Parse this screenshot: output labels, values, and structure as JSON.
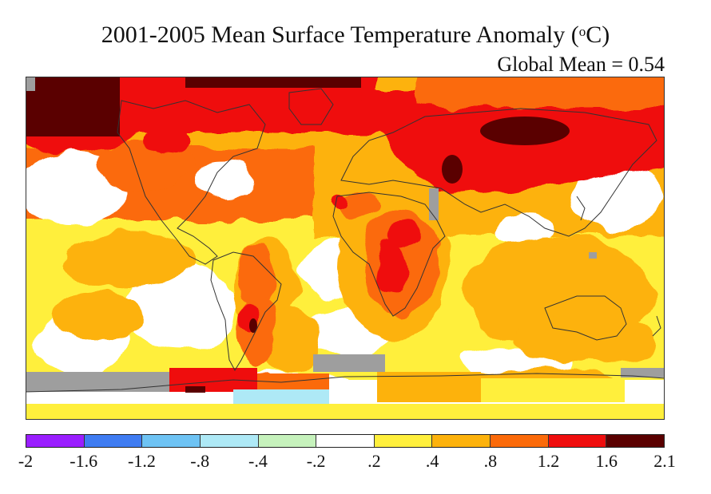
{
  "title": {
    "text": "2001-2005 Mean Surface Temperature Anomaly (",
    "unit_sup": "o",
    "unit_tail": "C)"
  },
  "subtitle": "Global Mean = 0.54",
  "legend": {
    "bins": [
      {
        "range": [
          -2,
          -1.6
        ],
        "color": "#9a1eff"
      },
      {
        "range": [
          -1.6,
          -1.2
        ],
        "color": "#3f7cf2"
      },
      {
        "range": [
          -1.2,
          -0.8
        ],
        "color": "#6ec3f4"
      },
      {
        "range": [
          -0.8,
          -0.4
        ],
        "color": "#aee9f6"
      },
      {
        "range": [
          -0.4,
          -0.2
        ],
        "color": "#c6f2bc"
      },
      {
        "range": [
          -0.2,
          0.2
        ],
        "color": "#ffffff"
      },
      {
        "range": [
          0.2,
          0.4
        ],
        "color": "#ffef3c"
      },
      {
        "range": [
          0.4,
          0.8
        ],
        "color": "#fdb20c"
      },
      {
        "range": [
          0.8,
          1.2
        ],
        "color": "#fb6a0a"
      },
      {
        "range": [
          1.2,
          1.6
        ],
        "color": "#ef0d0d"
      },
      {
        "range": [
          1.6,
          2.1
        ],
        "color": "#5a0000"
      }
    ],
    "tick_labels": [
      "-2",
      "-1.6",
      "-1.2",
      "-.8",
      "-.4",
      "-.2",
      ".2",
      ".4",
      ".8",
      "1.2",
      "1.6",
      "2.1"
    ]
  },
  "colors": {
    "no_data": "#9e9e9e",
    "coastline": "#333333",
    "background": "#ffffff"
  }
}
